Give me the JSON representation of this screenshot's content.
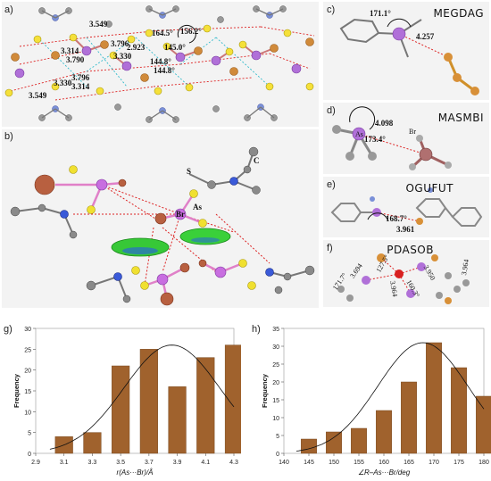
{
  "panels": {
    "a": {
      "label": "a)",
      "distances": [
        "3.549",
        "3.314",
        "3.790",
        "3.330",
        "3.796",
        "3.314",
        "3.549",
        "3.796",
        "3.330",
        "2.923"
      ],
      "angles": [
        "164.5°",
        "156.2°",
        "145.0°",
        "144.8°",
        "144.8°"
      ]
    },
    "b": {
      "label": "b)",
      "atoms": {
        "br": "Br",
        "as": "As",
        "s": "S",
        "c": "C"
      }
    },
    "c": {
      "label": "c)",
      "code": "MEGDAG",
      "angle": "171.1°",
      "distance": "4.257"
    },
    "d": {
      "label": "d)",
      "code": "MASMBI",
      "angle": "173.4°",
      "distance": "4.098",
      "atoms": {
        "as": "As",
        "br": "Br"
      }
    },
    "e": {
      "label": "e)",
      "code": "OGUFUT",
      "angle": "168.7°",
      "distance": "3.961"
    },
    "f": {
      "label": "f)",
      "code": "PDASOB",
      "angles": [
        "171.7°",
        "127.5°",
        "160.3°"
      ],
      "distances": [
        "3.694",
        "3.950",
        "3.964",
        "3.964"
      ]
    }
  },
  "colors": {
    "bar": "#a0622d",
    "bar_edge": "#7a4a20",
    "curve": "#111111",
    "panel_bg": "#f3f3f3"
  },
  "chart_data": [
    {
      "type": "bar",
      "panel_label": "g)",
      "categories": [
        "3.1",
        "3.3",
        "3.5",
        "3.7",
        "3.9",
        "4.1",
        "4.3"
      ],
      "values": [
        4,
        5,
        21,
        25,
        16,
        23,
        26
      ],
      "xlabel": "r(As···Br)/Å",
      "ylabel": "Frequency",
      "xticks": [
        "2.9",
        "3.1",
        "3.3",
        "3.5",
        "3.7",
        "3.9",
        "4.1",
        "4.3"
      ],
      "yticks": [
        "0",
        "5",
        "10",
        "15",
        "20",
        "25",
        "30"
      ],
      "xlim": [
        2.9,
        4.3
      ],
      "ylim": [
        0,
        30
      ],
      "curve": "normal-fit"
    },
    {
      "type": "bar",
      "panel_label": "h)",
      "categories": [
        "145",
        "150",
        "155",
        "160",
        "165",
        "170",
        "175",
        "180"
      ],
      "values": [
        4,
        6,
        7,
        12,
        20,
        31,
        24,
        16
      ],
      "xlabel": "∠R–As···Br/deg",
      "ylabel": "Frequency",
      "xticks": [
        "140",
        "145",
        "150",
        "155",
        "160",
        "165",
        "170",
        "175",
        "180"
      ],
      "yticks": [
        "0",
        "5",
        "10",
        "15",
        "20",
        "25",
        "30",
        "35"
      ],
      "xlim": [
        140,
        180
      ],
      "ylim": [
        0,
        35
      ],
      "curve": "normal-fit"
    }
  ]
}
